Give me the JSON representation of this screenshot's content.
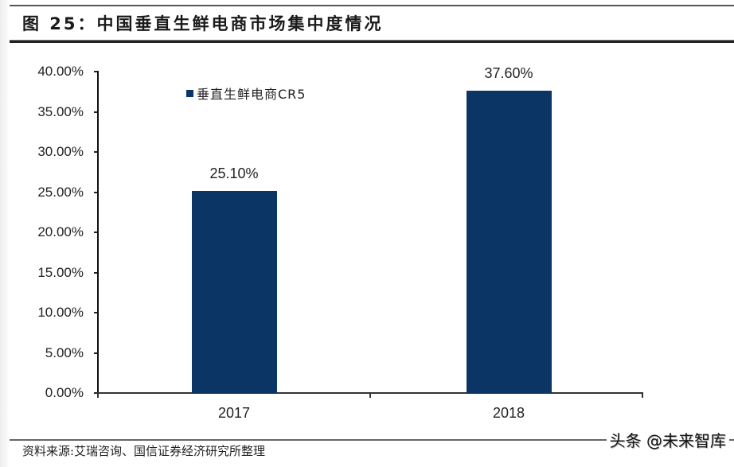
{
  "header": {
    "title": "图 25：中国垂直生鲜电商市场集中度情况"
  },
  "footer": {
    "source": "资料来源:艾瑞咨询、国信证券经济研究所整理",
    "watermark": "头条 @未来智库"
  },
  "colors": {
    "bar": "#0b3565"
  },
  "chart_data": {
    "type": "bar",
    "title": "中国垂直生鲜电商市场集中度情况",
    "figure_label": "图 25",
    "categories": [
      "2017",
      "2018"
    ],
    "series": [
      {
        "name": "垂直生鲜电商CR5",
        "values": [
          25.1,
          37.6
        ],
        "color": "#0b3565"
      }
    ],
    "data_labels": [
      "25.10%",
      "37.60%"
    ],
    "xlabel": "",
    "ylabel": "",
    "ylim": [
      0,
      40
    ],
    "yticks": [
      "0.00%",
      "5.00%",
      "10.00%",
      "15.00%",
      "20.00%",
      "25.00%",
      "30.00%",
      "35.00%",
      "40.00%"
    ],
    "legend_position": "top-left inside plot",
    "grid": false
  }
}
